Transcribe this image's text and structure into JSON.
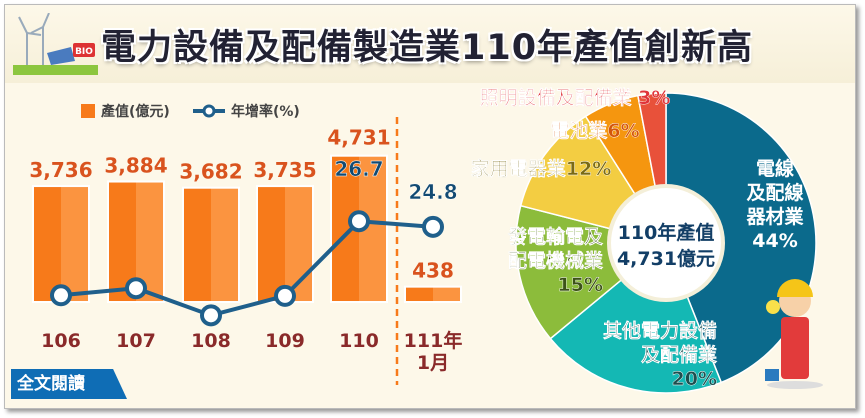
{
  "title": "電力設備及配備製造業110年產值創新高",
  "logo_text": "BIO",
  "read_more": "全文閱讀",
  "chart_data": [
    {
      "type": "bar+line",
      "categories": [
        "106",
        "107",
        "108",
        "109",
        "110",
        "111年\n1月"
      ],
      "category_lines": [
        [
          "106"
        ],
        [
          "107"
        ],
        [
          "108"
        ],
        [
          "109"
        ],
        [
          "110"
        ],
        [
          "111年",
          "1月"
        ]
      ],
      "legend": {
        "bar": "產值(億元)",
        "line": "年增率(%)"
      },
      "series": [
        {
          "name": "產值(億元)",
          "type": "bar",
          "values": [
            3736,
            3884,
            3682,
            3735,
            4731,
            438
          ],
          "labels": [
            "3,736",
            "3,884",
            "3,682",
            "3,735",
            "4,731",
            "438"
          ]
        },
        {
          "name": "年增率(%)",
          "type": "line",
          "values": [
            1.6,
            4.0,
            -5.2,
            1.4,
            26.7,
            24.8
          ],
          "labels": [
            null,
            null,
            null,
            null,
            "26.7",
            "24.8"
          ]
        }
      ],
      "colors": {
        "bar": "#f77a1a",
        "bar_light": "#fb9440",
        "line": "#1f5f8b",
        "bar_label": "#d9531e",
        "line_label": "#124a72",
        "category": "#8a2a2a"
      }
    },
    {
      "type": "pie",
      "center_label": [
        "110年產值",
        "4,731億元"
      ],
      "slices": [
        {
          "label": [
            "電線",
            "及配線",
            "器材業"
          ],
          "pct_label": "44%",
          "value": 44,
          "color": "#0b6a8c",
          "text": "#ffffff"
        },
        {
          "label": [
            "其他電力設備",
            "及配備業"
          ],
          "pct_label": "20%",
          "value": 20,
          "color": "#14b8b4",
          "text": "#1d4f4f"
        },
        {
          "label": [
            "發電輸電及",
            "配電機械業"
          ],
          "pct_label": "15%",
          "value": 15,
          "color": "#8cbc3b",
          "text": "#3c5218"
        },
        {
          "label": [
            "家用電器業"
          ],
          "pct_label": "12%",
          "value": 12,
          "color": "#f3cd42",
          "text": "#7a6a14"
        },
        {
          "label": [
            "電池業"
          ],
          "pct_label": "6%",
          "value": 6,
          "color": "#f5960f",
          "text": "#d3560c"
        },
        {
          "label": [
            "照明設備及配備業"
          ],
          "pct_label": "3%",
          "value": 3,
          "color": "#e8513a",
          "text": "#e0343a"
        }
      ]
    }
  ]
}
